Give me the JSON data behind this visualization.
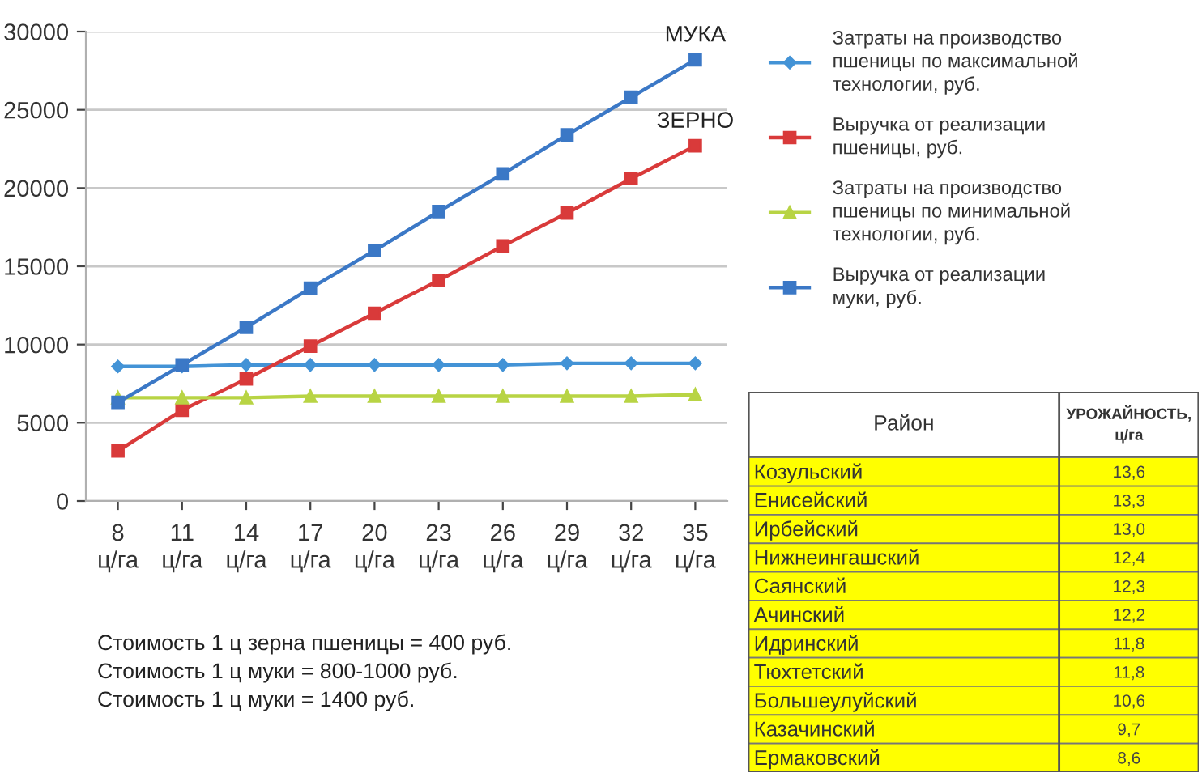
{
  "chart_data": [
    {
      "type": "line",
      "categories": [
        "8\nц/га",
        "11\nц/га",
        "14\nц/га",
        "17\nц/га",
        "20\nц/га",
        "23\nц/га",
        "26\nц/га",
        "29\nц/га",
        "32\nц/га",
        "35\nц/га"
      ],
      "series": [
        {
          "name": "Затраты на производство\nпшеницы по максимальной\nтехнологии, руб.",
          "color": "#4393d6",
          "marker": "diamond",
          "values": [
            8600,
            8600,
            8700,
            8700,
            8700,
            8700,
            8700,
            8800,
            8800,
            8800
          ]
        },
        {
          "name": "Выручка от реализации\nпшеницы, руб.",
          "color": "#d93a3a",
          "marker": "square",
          "values": [
            3200,
            5800,
            7800,
            9900,
            12000,
            14100,
            16300,
            18400,
            20600,
            22700
          ]
        },
        {
          "name": "Затраты на производство\nпшеницы по минимальной\nтехнологии, руб.",
          "color": "#b8d444",
          "marker": "triangle",
          "values": [
            6600,
            6600,
            6600,
            6700,
            6700,
            6700,
            6700,
            6700,
            6700,
            6800
          ]
        },
        {
          "name": "Выручка от реализации\nмуки, руб.",
          "color": "#3b78c6",
          "marker": "square",
          "values": [
            6300,
            8700,
            11100,
            13600,
            16000,
            18500,
            20900,
            23400,
            25800,
            28200
          ]
        }
      ],
      "ylim": [
        0,
        30000
      ],
      "yticks": [
        0,
        5000,
        10000,
        15000,
        20000,
        25000,
        30000
      ],
      "grid": "y",
      "legend": "right",
      "line_style": "solid",
      "annotations": [
        {
          "text": "МУКА",
          "x": "35\nц/га",
          "y": 28200
        },
        {
          "text": "ЗЕРНО",
          "x": "35\nц/га",
          "y": 22700
        },
        "Стоимость 1 ц зерна пшеницы = 400 руб.",
        "Стоимость 1 ц муки = 800-1000 руб.",
        "Стоимость 1 ц муки = 1400 руб."
      ]
    },
    {
      "type": "other",
      "xlabel": "Район",
      "ylabel": "УРОЖАЙНОСТЬ,\nц/га",
      "categories": [
        "Козульский",
        "Енисейский",
        "Ирбейский",
        "Нижнеингашский",
        "Саянский",
        "Ачинский",
        "Идринский",
        "Тюхтетский",
        "Большеулуйский",
        "Казачинский",
        "Ермаковский"
      ],
      "value_labels": [
        "13,6",
        "13,3",
        "13,0",
        "12,4",
        "12,3",
        "12,2",
        "11,8",
        "11,8",
        "10,6",
        "9,7",
        "8,6"
      ],
      "color": "#ffff00"
    }
  ]
}
